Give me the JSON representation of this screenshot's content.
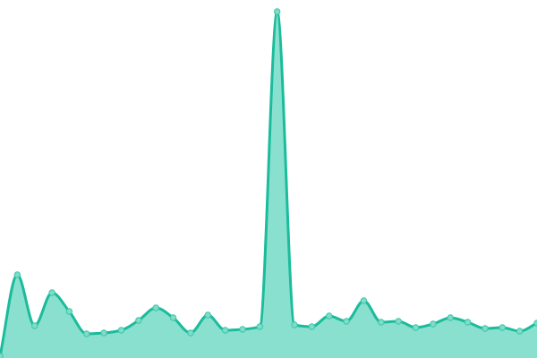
{
  "chart_data": {
    "type": "area",
    "title": "",
    "xlabel": "",
    "ylabel": "",
    "x": [
      0,
      1,
      2,
      3,
      4,
      5,
      6,
      7,
      8,
      9,
      10,
      11,
      12,
      13,
      14,
      15,
      16,
      17,
      18,
      19,
      20,
      21,
      22,
      23,
      24,
      25,
      26,
      27,
      28,
      29,
      30,
      31
    ],
    "values": [
      2,
      93,
      36,
      73,
      52,
      27,
      28,
      31,
      42,
      56,
      45,
      28,
      48,
      31,
      32,
      35,
      387,
      37,
      35,
      47,
      41,
      64,
      40,
      41,
      34,
      38,
      45,
      40,
      33,
      34,
      30,
      39
    ],
    "ylim": [
      0,
      400
    ],
    "grid": false,
    "axes_visible": false,
    "curve": "smooth",
    "markers": true,
    "colors": {
      "line": "#1abc9c",
      "fill": "#8ae0cf",
      "marker_fill": "#7fdcc8",
      "marker_stroke": "#3cc6a8"
    }
  }
}
